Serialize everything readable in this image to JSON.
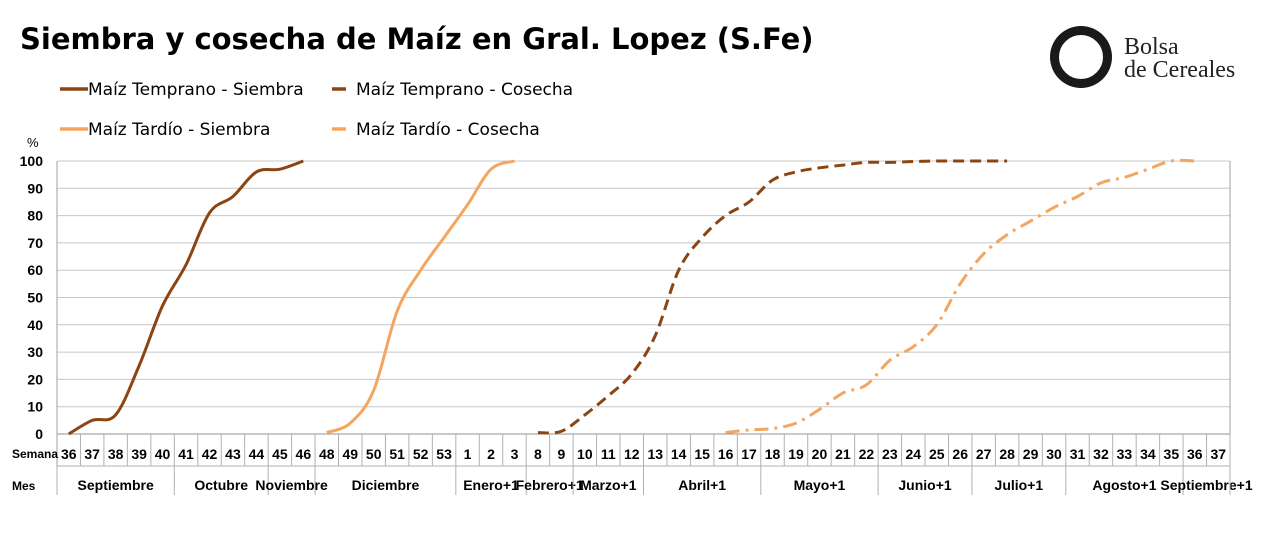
{
  "title": "Siembra y cosecha de Maíz en Gral. Lopez (S.Fe)",
  "logo": {
    "line1": "Bolsa",
    "line2": "de Cereales"
  },
  "colors": {
    "dark": "#8B4513",
    "light": "#F4A55F",
    "grid": "#C8C8C8",
    "axis": "#A0A0A0"
  },
  "legend": [
    {
      "label": "Maíz Temprano - Siembra",
      "style": "solid",
      "color": "#8B4513"
    },
    {
      "label": "Maíz Temprano - Cosecha",
      "style": "dashed",
      "color": "#8B4513"
    },
    {
      "label": "Maíz Tardío - Siembra",
      "style": "solid",
      "color": "#F4A55F"
    },
    {
      "label": "Maíz Tardío - Cosecha",
      "style": "dashdot",
      "color": "#F4A55F"
    }
  ],
  "chart_data": {
    "type": "line",
    "title": "Siembra y cosecha de Maíz en Gral. Lopez (S.Fe)",
    "ylabel": "%",
    "ylim": [
      0,
      100
    ],
    "yticks": [
      0,
      10,
      20,
      30,
      40,
      50,
      60,
      70,
      80,
      90,
      100
    ],
    "grid": true,
    "week_row_label": "Semana",
    "month_row_label": "Mes",
    "weeks": [
      "36",
      "37",
      "38",
      "39",
      "40",
      "41",
      "42",
      "43",
      "44",
      "45",
      "46",
      "48",
      "49",
      "50",
      "51",
      "52",
      "53",
      "1",
      "2",
      "3",
      "8",
      "9",
      "10",
      "11",
      "12",
      "13",
      "14",
      "15",
      "16",
      "17",
      "18",
      "19",
      "20",
      "21",
      "22",
      "23",
      "24",
      "25",
      "26",
      "27",
      "28",
      "29",
      "30",
      "31",
      "32",
      "33",
      "34",
      "35",
      "36",
      "37"
    ],
    "months": [
      {
        "label": "Septiembre",
        "start": 0,
        "end": 4
      },
      {
        "label": "Octubre",
        "start": 5,
        "end": 8
      },
      {
        "label": "Noviembre",
        "start": 9,
        "end": 10
      },
      {
        "label": "Diciembre",
        "start": 11,
        "end": 16
      },
      {
        "label": "Enero+1",
        "start": 17,
        "end": 19
      },
      {
        "label": "Febrero+1",
        "start": 20,
        "end": 21
      },
      {
        "label": "Marzo+1",
        "start": 22,
        "end": 24
      },
      {
        "label": "Abril+1",
        "start": 25,
        "end": 29
      },
      {
        "label": "Mayo+1",
        "start": 30,
        "end": 34
      },
      {
        "label": "Junio+1",
        "start": 35,
        "end": 38
      },
      {
        "label": "Julio+1",
        "start": 39,
        "end": 42
      },
      {
        "label": "Agosto+1",
        "start": 43,
        "end": 47
      },
      {
        "label": "Septiembre+1",
        "start": 48,
        "end": 49
      }
    ],
    "series": [
      {
        "name": "Maíz Temprano - Siembra",
        "style": "solid",
        "color": "#8B4513",
        "points": [
          [
            0,
            0
          ],
          [
            1,
            5
          ],
          [
            2,
            7
          ],
          [
            3,
            25
          ],
          [
            4,
            47
          ],
          [
            5,
            62
          ],
          [
            6,
            81
          ],
          [
            7,
            87
          ],
          [
            8,
            96
          ],
          [
            9,
            97
          ],
          [
            10,
            100
          ]
        ]
      },
      {
        "name": "Maíz Temprano - Cosecha",
        "style": "dashed",
        "color": "#8B4513",
        "points": [
          [
            20,
            0.5
          ],
          [
            21,
            1
          ],
          [
            22,
            7
          ],
          [
            23,
            14
          ],
          [
            24,
            22
          ],
          [
            25,
            36
          ],
          [
            26,
            60
          ],
          [
            27,
            72
          ],
          [
            28,
            80
          ],
          [
            29,
            85
          ],
          [
            30,
            93
          ],
          [
            31,
            96
          ],
          [
            32,
            97.5
          ],
          [
            33,
            98.5
          ],
          [
            34,
            99.5
          ],
          [
            35,
            99.5
          ],
          [
            36,
            99.8
          ],
          [
            37,
            100
          ],
          [
            38,
            100
          ],
          [
            39,
            100
          ],
          [
            40,
            100
          ]
        ]
      },
      {
        "name": "Maíz Tardío - Siembra",
        "style": "solid",
        "color": "#F4A55F",
        "points": [
          [
            11,
            0.5
          ],
          [
            12,
            4
          ],
          [
            13,
            16
          ],
          [
            14,
            45
          ],
          [
            15,
            60
          ],
          [
            16,
            72
          ],
          [
            17,
            84
          ],
          [
            18,
            97
          ],
          [
            19,
            100
          ]
        ]
      },
      {
        "name": "Maíz Tardío - Cosecha",
        "style": "dashdot",
        "color": "#F4A55F",
        "points": [
          [
            28,
            0.5
          ],
          [
            29,
            1.5
          ],
          [
            30,
            2
          ],
          [
            31,
            4
          ],
          [
            32,
            9
          ],
          [
            33,
            15
          ],
          [
            34,
            18
          ],
          [
            35,
            27
          ],
          [
            36,
            32
          ],
          [
            37,
            40
          ],
          [
            38,
            55
          ],
          [
            39,
            66
          ],
          [
            40,
            73
          ],
          [
            41,
            78
          ],
          [
            42,
            83
          ],
          [
            43,
            87
          ],
          [
            44,
            92
          ],
          [
            45,
            94
          ],
          [
            46,
            97
          ],
          [
            47,
            100
          ],
          [
            48,
            100
          ]
        ]
      }
    ]
  }
}
